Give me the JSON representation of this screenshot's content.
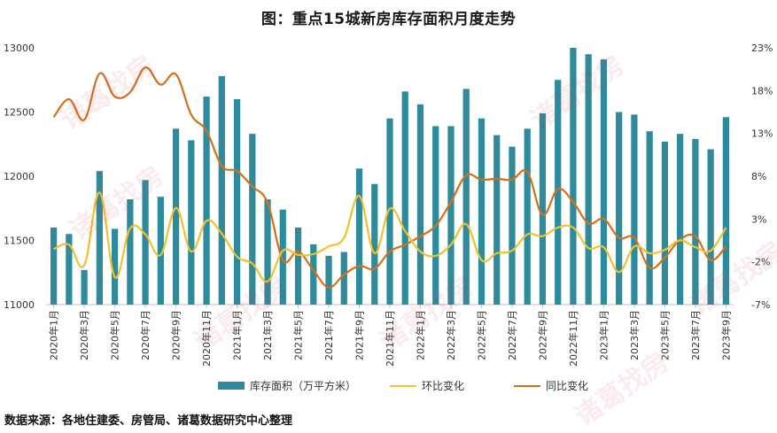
{
  "chart_data": {
    "type": "bar+line",
    "title": "图：重点15城新房库存面积月度走势",
    "categories": [
      "2020年1月",
      "2020年2月",
      "2020年3月",
      "2020年4月",
      "2020年5月",
      "2020年6月",
      "2020年7月",
      "2020年8月",
      "2020年9月",
      "2020年10月",
      "2020年11月",
      "2020年12月",
      "2021年1月",
      "2021年2月",
      "2021年3月",
      "2021年4月",
      "2021年5月",
      "2021年6月",
      "2021年7月",
      "2021年8月",
      "2021年9月",
      "2021年10月",
      "2021年11月",
      "2021年12月",
      "2022年1月",
      "2022年2月",
      "2022年3月",
      "2022年4月",
      "2022年5月",
      "2022年6月",
      "2022年7月",
      "2022年8月",
      "2022年9月",
      "2022年10月",
      "2022年11月",
      "2022年12月",
      "2023年1月",
      "2023年2月",
      "2023年3月",
      "2023年4月",
      "2023年5月",
      "2023年6月",
      "2023年7月",
      "2023年8月",
      "2023年9月"
    ],
    "x_tick_labels": [
      "2020年1月",
      "2020年3月",
      "2020年5月",
      "2020年7月",
      "2020年9月",
      "2020年11月",
      "2021年1月",
      "2021年3月",
      "2021年5月",
      "2021年7月",
      "2021年9月",
      "2021年11月",
      "2022年1月",
      "2022年3月",
      "2022年5月",
      "2022年7月",
      "2022年9月",
      "2022年11月",
      "2023年1月",
      "2023年3月",
      "2023年5月",
      "2023年7月",
      "2023年9月"
    ],
    "series": [
      {
        "name": "库存面积（万平方米）",
        "kind": "bar",
        "axis": "left",
        "color": "#2e8b9c",
        "values": [
          11600,
          11550,
          11270,
          12040,
          11590,
          11820,
          11970,
          11840,
          12370,
          12280,
          12620,
          12780,
          12600,
          12330,
          11820,
          11740,
          11600,
          11470,
          11380,
          11410,
          12060,
          11940,
          12450,
          12660,
          12560,
          12390,
          12390,
          12680,
          12450,
          12320,
          12230,
          12370,
          12490,
          12750,
          13000,
          12950,
          12910,
          12500,
          12480,
          12350,
          12270,
          12330,
          12290,
          12210,
          12460
        ]
      },
      {
        "name": "环比变化",
        "kind": "line",
        "axis": "right",
        "color": "#f2c12e",
        "values": [
          -0.5,
          0.0,
          -2.4,
          6.1,
          -3.8,
          1.9,
          1.2,
          -1.2,
          4.3,
          -0.8,
          2.8,
          1.3,
          -1.4,
          -2.2,
          -4.3,
          -0.7,
          -1.2,
          -1.1,
          -0.2,
          0.8,
          5.7,
          -1.0,
          4.2,
          1.6,
          -0.8,
          -1.3,
          0.0,
          2.4,
          -1.8,
          -1.0,
          -0.7,
          1.2,
          1.0,
          2.0,
          2.0,
          -0.4,
          -0.3,
          -3.2,
          -0.2,
          -1.0,
          -0.6,
          0.5,
          -0.3,
          -0.7,
          2.0
        ]
      },
      {
        "name": "同比变化",
        "kind": "line",
        "axis": "right",
        "color": "#d4701c",
        "values": [
          14.9,
          17.0,
          14.6,
          20.0,
          17.3,
          17.8,
          20.7,
          18.7,
          19.9,
          15.2,
          13.3,
          9.2,
          8.6,
          6.8,
          4.9,
          -1.8,
          -0.8,
          -3.0,
          -5.0,
          -3.5,
          -2.5,
          -2.8,
          -0.8,
          0.0,
          1.0,
          2.2,
          5.0,
          8.1,
          7.6,
          7.7,
          7.6,
          8.5,
          3.5,
          6.5,
          5.0,
          2.5,
          3.0,
          0.8,
          0.8,
          -2.7,
          -1.5,
          0.6,
          1.0,
          -1.8,
          -0.2
        ]
      }
    ],
    "y_left": {
      "min": 11000,
      "max": 13000,
      "ticks": [
        11000,
        11500,
        12000,
        12500,
        13000
      ]
    },
    "y_right": {
      "min": -7,
      "max": 23,
      "ticks": [
        "-7%",
        "-2%",
        "3%",
        "8%",
        "13%",
        "18%",
        "23%"
      ]
    },
    "legend_position": "bottom",
    "grid": false
  },
  "source": "数据来源：各地住建委、房管局、诸葛数据研究中心整理",
  "watermark_text": "诸葛找房"
}
